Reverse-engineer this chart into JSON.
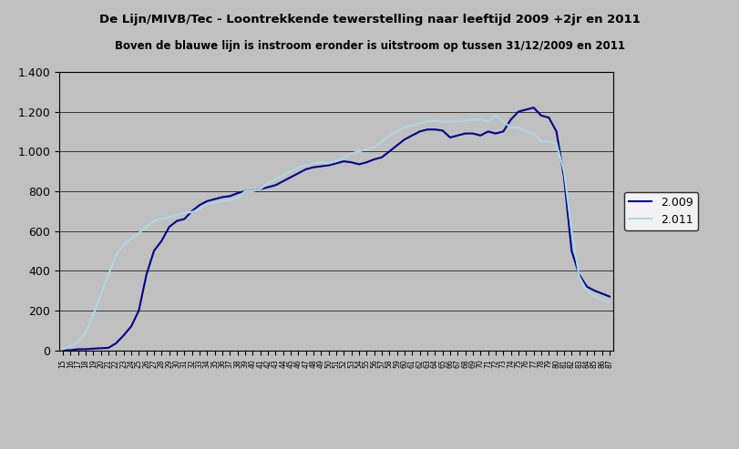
{
  "title1": "De Lijn/MIVB/Tec - Loontrekkende tewerstelling naar leeftijd 2009 +2jr en 2011",
  "title2": "Boven de blauwe lijn is instroom eronder is uitstroom op tussen 31/12/2009 en 2011",
  "legend_2009": "2.009",
  "legend_2011": "2.011",
  "color_2009": "#00008B",
  "color_2011": "#ADD8E6",
  "background_color": "#C0C0C0",
  "plot_background": "#C0C0C0",
  "ylim": [
    0,
    1400
  ],
  "yticks": [
    0,
    200,
    400,
    600,
    800,
    1000,
    1200,
    1400
  ],
  "ytick_labels": [
    "0",
    "200",
    "400",
    "600",
    "800",
    "1.000",
    "1.200",
    "1.400"
  ],
  "series_2009": [
    0,
    0,
    5,
    5,
    8,
    10,
    12,
    35,
    75,
    120,
    200,
    380,
    500,
    550,
    620,
    650,
    660,
    700,
    730,
    750,
    760,
    770,
    775,
    790,
    800,
    800,
    810,
    820,
    830,
    850,
    870,
    890,
    910,
    920,
    925,
    930,
    940,
    950,
    945,
    935,
    945,
    960,
    970,
    1000,
    1030,
    1060,
    1080,
    1100,
    1110,
    1110,
    1105,
    1070,
    1080,
    1090,
    1090,
    1080,
    1100,
    1090,
    1100,
    1160,
    1200,
    1210,
    1220,
    1180,
    1170,
    1100,
    870,
    500,
    380,
    320,
    300,
    285,
    270
  ],
  "series_2011": [
    5,
    20,
    40,
    90,
    180,
    280,
    380,
    480,
    530,
    560,
    590,
    620,
    650,
    660,
    670,
    680,
    690,
    695,
    710,
    735,
    740,
    750,
    755,
    765,
    800,
    800,
    810,
    840,
    860,
    880,
    900,
    920,
    930,
    940,
    945,
    940,
    950,
    970,
    990,
    1000,
    1010,
    1020,
    1050,
    1080,
    1100,
    1120,
    1130,
    1140,
    1150,
    1155,
    1150,
    1150,
    1150,
    1155,
    1160,
    1160,
    1150,
    1180,
    1150,
    1120,
    1120,
    1100,
    1090,
    1050,
    1050,
    1040,
    900,
    600,
    370,
    300,
    270,
    255,
    240
  ]
}
